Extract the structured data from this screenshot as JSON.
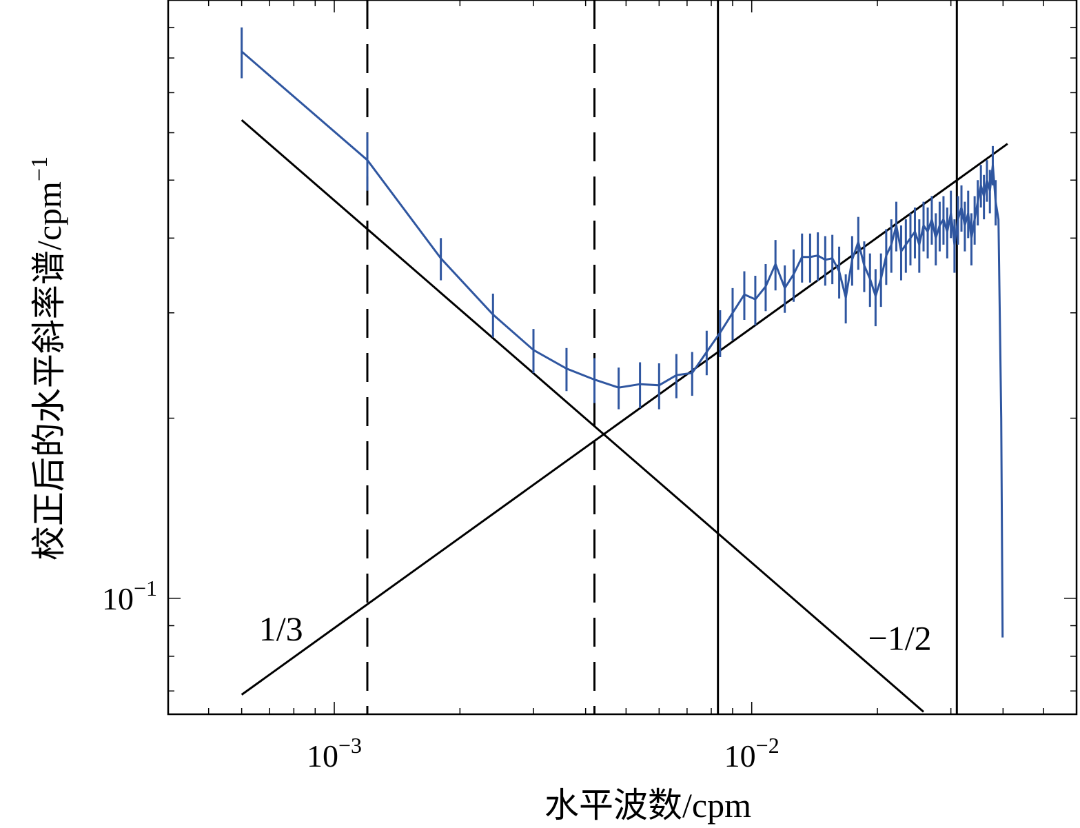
{
  "chart_data": {
    "type": "line",
    "xscale": "log",
    "yscale": "log",
    "xlim": [
      0.0004,
      0.06
    ],
    "ylim": [
      0.064,
      1.0
    ],
    "xlabel": "水平波数/cpm",
    "ylabel": "校正后的水平斜率谱/cpm",
    "ylabel_sup": "−1",
    "x_ticks": [
      {
        "value": 0.001,
        "base": "10",
        "exp": "−3"
      },
      {
        "value": 0.01,
        "base": "10",
        "exp": "−2"
      }
    ],
    "y_ticks": [
      {
        "value": 0.1,
        "base": "10",
        "exp": "−1"
      }
    ],
    "series": [
      {
        "color": "#2f56a0",
        "x": [
          0.0006,
          0.0012,
          0.0018,
          0.0024,
          0.003,
          0.0036,
          0.0042,
          0.0048,
          0.0054,
          0.006,
          0.0066,
          0.0072,
          0.0078,
          0.0084,
          0.009,
          0.0096,
          0.0102,
          0.0108,
          0.0114,
          0.012,
          0.0126,
          0.0132,
          0.0138,
          0.0144,
          0.015,
          0.0156,
          0.0162,
          0.0168,
          0.0174,
          0.018,
          0.0186,
          0.0192,
          0.0198,
          0.0204,
          0.021,
          0.0216,
          0.0222,
          0.0228,
          0.0234,
          0.024,
          0.0246,
          0.0252,
          0.0258,
          0.0264,
          0.027,
          0.0276,
          0.0282,
          0.0288,
          0.0294,
          0.03,
          0.0306,
          0.0312,
          0.0318,
          0.0324,
          0.033,
          0.0336,
          0.0342,
          0.0348,
          0.0354,
          0.036,
          0.0366,
          0.0372,
          0.0378,
          0.0384,
          0.039,
          0.0396,
          0.0399
        ],
        "y": [
          0.82,
          0.54,
          0.37,
          0.298,
          0.26,
          0.242,
          0.232,
          0.225,
          0.228,
          0.227,
          0.236,
          0.238,
          0.258,
          0.278,
          0.3,
          0.322,
          0.316,
          0.332,
          0.362,
          0.33,
          0.348,
          0.372,
          0.372,
          0.374,
          0.368,
          0.37,
          0.352,
          0.318,
          0.368,
          0.394,
          0.36,
          0.342,
          0.32,
          0.342,
          0.374,
          0.39,
          0.42,
          0.38,
          0.39,
          0.4,
          0.41,
          0.39,
          0.42,
          0.41,
          0.43,
          0.4,
          0.42,
          0.43,
          0.41,
          0.44,
          0.39,
          0.43,
          0.45,
          0.42,
          0.44,
          0.4,
          0.43,
          0.46,
          0.49,
          0.47,
          0.5,
          0.48,
          0.53,
          0.46,
          0.43,
          0.2,
          0.086
        ],
        "err": [
          0.08,
          0.06,
          0.03,
          0.025,
          0.022,
          0.02,
          0.02,
          0.018,
          0.02,
          0.02,
          0.02,
          0.02,
          0.022,
          0.025,
          0.03,
          0.03,
          0.03,
          0.03,
          0.035,
          0.03,
          0.035,
          0.035,
          0.035,
          0.035,
          0.035,
          0.035,
          0.035,
          0.03,
          0.035,
          0.04,
          0.035,
          0.035,
          0.035,
          0.035,
          0.04,
          0.04,
          0.04,
          0.04,
          0.04,
          0.04,
          0.04,
          0.04,
          0.04,
          0.04,
          0.04,
          0.04,
          0.04,
          0.04,
          0.04,
          0.04,
          0.04,
          0.04,
          0.04,
          0.04,
          0.04,
          0.04,
          0.04,
          0.04,
          0.04,
          0.04,
          0.04,
          0.04,
          0.04,
          0.04,
          0.0,
          0.0,
          0.0
        ]
      }
    ],
    "reference_lines": [
      {
        "color": "#000000",
        "x": [
          0.0006,
          0.0258
        ],
        "y": [
          0.63,
          0.0646
        ]
      },
      {
        "color": "#000000",
        "x": [
          0.0006,
          0.041
        ],
        "y": [
          0.069,
          0.575
        ]
      }
    ],
    "vlines": [
      {
        "x": 0.0012,
        "style": "dashed"
      },
      {
        "x": 0.0042,
        "style": "dashed"
      },
      {
        "x": 0.0083,
        "style": "solid"
      },
      {
        "x": 0.031,
        "style": "solid"
      }
    ],
    "annotations": [
      {
        "text": "1/3",
        "x": 0.00066,
        "y": 0.085
      },
      {
        "text": "−1/2",
        "x": 0.019,
        "y": 0.082
      }
    ],
    "grid": false
  }
}
